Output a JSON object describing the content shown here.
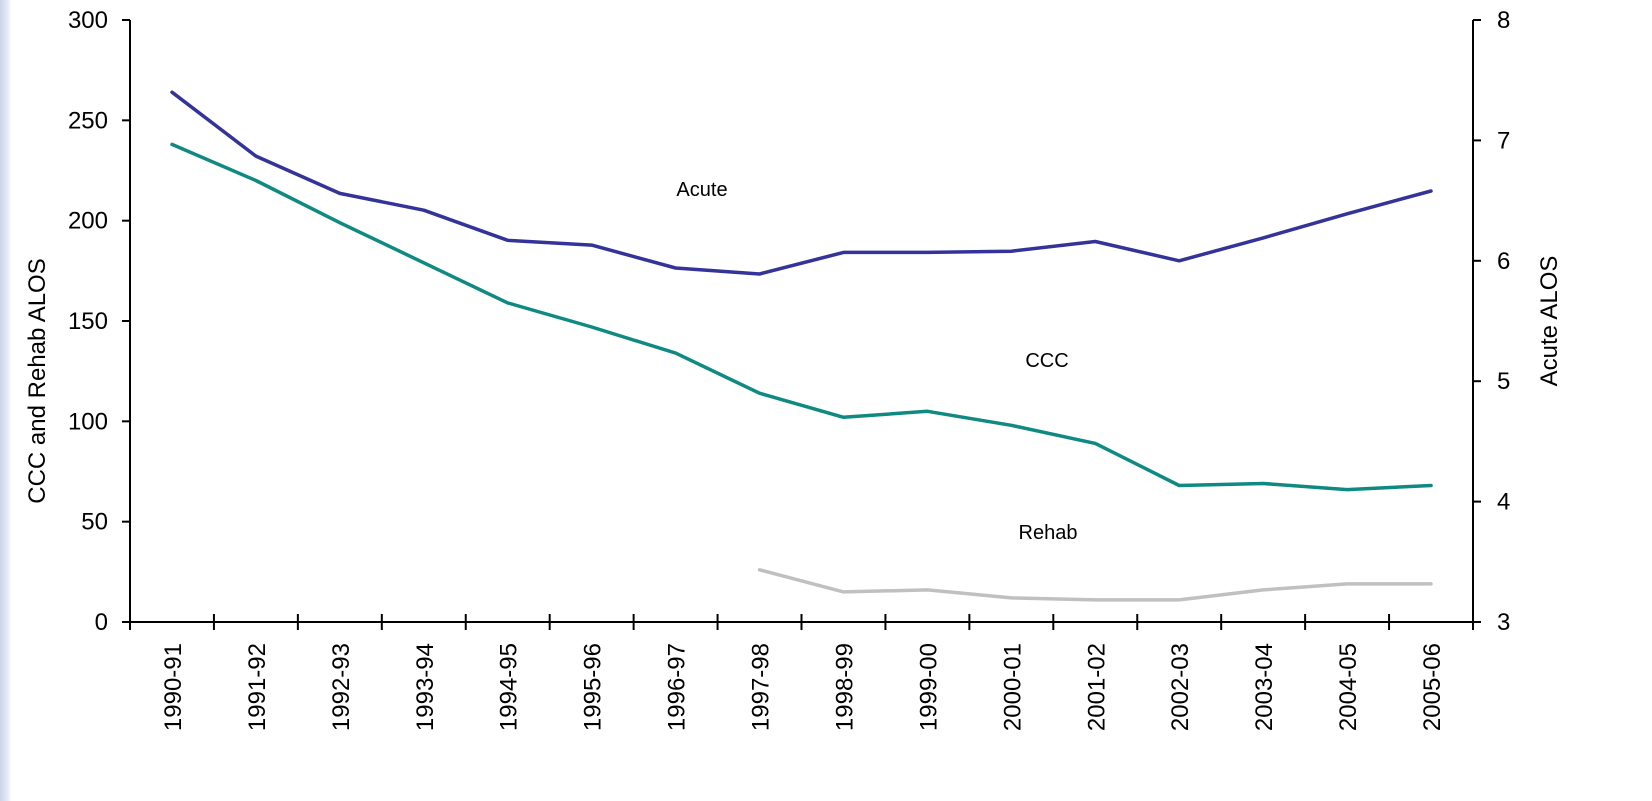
{
  "chart_data": {
    "type": "line",
    "categories": [
      "1990-91",
      "1991-92",
      "1992-93",
      "1993-94",
      "1994-95",
      "1995-96",
      "1996-97",
      "1997-98",
      "1998-99",
      "1999-00",
      "2000-01",
      "2001-02",
      "2002-03",
      "2003-04",
      "2004-05",
      "2005-06"
    ],
    "left_axis": {
      "label": "CCC and Rehab ALOS",
      "ylim": [
        0,
        300
      ],
      "ticks": [
        0,
        50,
        100,
        150,
        200,
        250,
        300
      ]
    },
    "right_axis": {
      "label": "Acute ALOS",
      "ylim": [
        3,
        8
      ],
      "ticks": [
        3,
        4,
        5,
        6,
        7,
        8
      ]
    },
    "series": [
      {
        "name": "Acute",
        "axis": "right",
        "color": "#333399",
        "values": [
          7.4,
          6.87,
          6.56,
          6.42,
          6.17,
          6.13,
          5.94,
          5.89,
          6.07,
          6.07,
          6.08,
          6.16,
          6.0,
          6.19,
          6.39,
          6.58
        ],
        "label_near": "1996-97"
      },
      {
        "name": "CCC",
        "axis": "left",
        "color": "#0f8a82",
        "values": [
          238,
          220,
          199,
          179,
          159,
          147,
          134,
          114,
          102,
          105,
          98,
          89,
          68,
          69,
          66,
          68
        ],
        "label_near": "2000-01"
      },
      {
        "name": "Rehab",
        "axis": "left",
        "color": "#c0c0c0",
        "values": [
          null,
          null,
          null,
          null,
          null,
          null,
          null,
          26,
          15,
          16,
          12,
          11,
          11,
          16,
          19,
          19
        ],
        "label_near": "2000-01"
      }
    ],
    "grid": false,
    "legend": "inline labels"
  }
}
